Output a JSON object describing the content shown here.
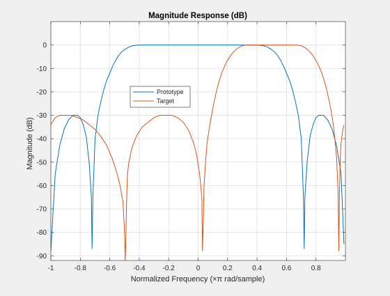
{
  "chart_data": {
    "type": "line",
    "title": "Magnitude Response (dB)",
    "xlabel": "Normalized Frequency (×π rad/sample)",
    "ylabel": "Magnitude (dB)",
    "xlim": [
      -1,
      1
    ],
    "ylim": [
      -92,
      10
    ],
    "xticks": [
      -1,
      -0.8,
      -0.6,
      -0.4,
      -0.2,
      0,
      0.2,
      0.4,
      0.6,
      0.8
    ],
    "yticks": [
      0,
      -10,
      -20,
      -30,
      -40,
      -50,
      -60,
      -70,
      -80,
      -90
    ],
    "xtick_labels": [
      "-1",
      "-0.8",
      "-0.6",
      "-0.4",
      "-0.2",
      "0",
      "0.2",
      "0.4",
      "0.6",
      "0.8"
    ],
    "ytick_labels": [
      "0",
      "-10",
      "-20",
      "-30",
      "-40",
      "-50",
      "-60",
      "-70",
      "-80",
      "-90"
    ],
    "grid": true,
    "legend_position": "center-left",
    "series": [
      {
        "name": "Prototype",
        "color": "#0072bd",
        "x": [
          -1.0,
          -0.97,
          -0.94,
          -0.91,
          -0.88,
          -0.85,
          -0.82,
          -0.8,
          -0.78,
          -0.76,
          -0.74,
          -0.725,
          -0.72,
          -0.715,
          -0.7,
          -0.68,
          -0.66,
          -0.64,
          -0.62,
          -0.6,
          -0.58,
          -0.56,
          -0.54,
          -0.52,
          -0.5,
          -0.48,
          -0.46,
          -0.44,
          -0.42,
          -0.4,
          -0.38,
          -0.3,
          -0.2,
          -0.1,
          0.0,
          0.1,
          0.2,
          0.3,
          0.38,
          0.4,
          0.42,
          0.44,
          0.46,
          0.48,
          0.5,
          0.52,
          0.54,
          0.56,
          0.58,
          0.6,
          0.62,
          0.64,
          0.66,
          0.68,
          0.7,
          0.715,
          0.72,
          0.725,
          0.74,
          0.76,
          0.78,
          0.8,
          0.82,
          0.85,
          0.88,
          0.91,
          0.94,
          0.97,
          0.99
        ],
        "y": [
          -88,
          -55,
          -43,
          -36,
          -32,
          -30,
          -30,
          -31,
          -34,
          -39,
          -50,
          -65,
          -87,
          -65,
          -40,
          -30,
          -24,
          -19,
          -15,
          -12,
          -9,
          -6.5,
          -4.5,
          -3,
          -2,
          -1.2,
          -0.6,
          -0.3,
          -0.1,
          0,
          0,
          0,
          0,
          0,
          0,
          0,
          0,
          0,
          0,
          0,
          -0.1,
          -0.3,
          -0.6,
          -1.2,
          -2,
          -3,
          -4.5,
          -6.5,
          -9,
          -12,
          -15,
          -19,
          -24,
          -30,
          -40,
          -65,
          -87,
          -65,
          -50,
          -39,
          -34,
          -31,
          -30,
          -30,
          -32,
          -36,
          -43,
          -55,
          -85
        ]
      },
      {
        "name": "Target",
        "color": "#d95319",
        "x": [
          -1.0,
          -0.97,
          -0.94,
          -0.9,
          -0.86,
          -0.82,
          -0.78,
          -0.74,
          -0.7,
          -0.66,
          -0.62,
          -0.58,
          -0.55,
          -0.53,
          -0.51,
          -0.5,
          -0.495,
          -0.49,
          -0.485,
          -0.48,
          -0.47,
          -0.45,
          -0.42,
          -0.38,
          -0.34,
          -0.3,
          -0.26,
          -0.22,
          -0.18,
          -0.14,
          -0.1,
          -0.06,
          -0.03,
          -0.01,
          0.01,
          0.025,
          0.03,
          0.035,
          0.04,
          0.045,
          0.05,
          0.06,
          0.08,
          0.1,
          0.12,
          0.14,
          0.16,
          0.18,
          0.2,
          0.22,
          0.24,
          0.26,
          0.28,
          0.3,
          0.32,
          0.34,
          0.36,
          0.38,
          0.42,
          0.5,
          0.6,
          0.64,
          0.68,
          0.7,
          0.72,
          0.74,
          0.76,
          0.78,
          0.8,
          0.82,
          0.84,
          0.86,
          0.88,
          0.9,
          0.92,
          0.94,
          0.95,
          0.955,
          0.96,
          0.965,
          0.97,
          0.98,
          0.99
        ],
        "y": [
          -34,
          -31,
          -30,
          -30,
          -30,
          -31,
          -32,
          -34,
          -36,
          -39,
          -43,
          -49,
          -55,
          -60,
          -67,
          -80,
          -92,
          -80,
          -65,
          -55,
          -50,
          -44,
          -39,
          -35,
          -33,
          -31,
          -30,
          -30,
          -30,
          -31,
          -33,
          -37,
          -42,
          -47,
          -55,
          -65,
          -88,
          -75,
          -60,
          -55,
          -50,
          -42,
          -34,
          -27,
          -21,
          -16,
          -12,
          -9,
          -6.5,
          -4.5,
          -3,
          -1.8,
          -0.9,
          -0.3,
          0,
          0,
          0,
          0,
          0,
          0,
          0,
          0,
          -0.1,
          -0.3,
          -0.9,
          -1.8,
          -3,
          -4.5,
          -6.5,
          -9,
          -12,
          -16,
          -21,
          -27,
          -35,
          -48,
          -62,
          -88,
          -62,
          -48,
          -42,
          -37,
          -34
        ]
      }
    ]
  }
}
